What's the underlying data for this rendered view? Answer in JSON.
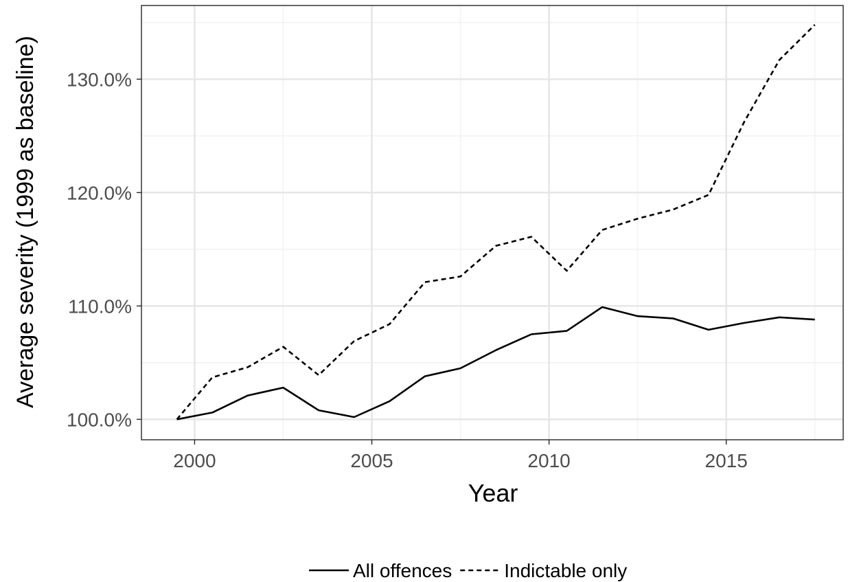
{
  "chart_data": {
    "type": "line",
    "title": "",
    "xlabel": "Year",
    "ylabel": "Average severity (1999 as baseline)",
    "x_ticks": [
      "2000",
      "2005",
      "2010",
      "2015"
    ],
    "y_ticks": [
      "100.0%",
      "110.0%",
      "120.0%",
      "130.0%"
    ],
    "xlim": [
      1998.5,
      2018.3
    ],
    "ylim": [
      98.2,
      136.5
    ],
    "grid": true,
    "legend_position": "bottom",
    "x": [
      1999.5,
      2000.5,
      2001.5,
      2002.5,
      2003.5,
      2004.5,
      2005.5,
      2006.5,
      2007.5,
      2008.5,
      2009.5,
      2010.5,
      2011.5,
      2012.5,
      2013.5,
      2014.5,
      2015.5,
      2016.5,
      2017.5
    ],
    "series": [
      {
        "name": "All offences",
        "line_style": "solid",
        "color": "#000000",
        "values": [
          100.0,
          100.6,
          102.1,
          102.8,
          100.8,
          100.2,
          101.6,
          103.8,
          104.5,
          106.1,
          107.5,
          107.8,
          109.9,
          109.1,
          108.9,
          107.9,
          108.5,
          109.0,
          108.8
        ]
      },
      {
        "name": "Indictable only",
        "line_style": "dashed",
        "color": "#000000",
        "values": [
          100.0,
          103.7,
          104.6,
          106.4,
          103.9,
          106.9,
          108.4,
          112.1,
          112.6,
          115.3,
          116.1,
          113.1,
          116.7,
          117.7,
          118.5,
          119.8,
          126.2,
          131.7,
          134.8
        ]
      }
    ]
  }
}
